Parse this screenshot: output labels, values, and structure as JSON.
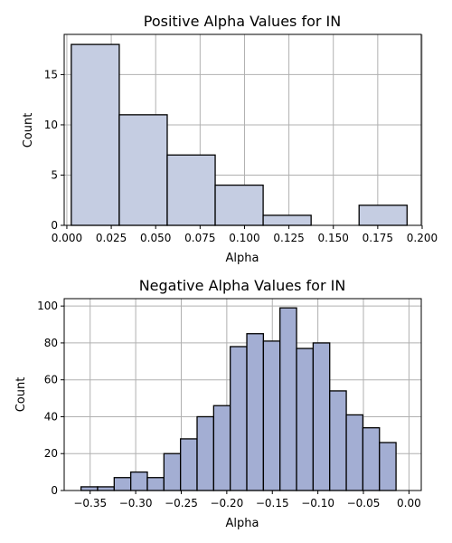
{
  "chart_data": [
    {
      "type": "bar",
      "title": "Positive Alpha Values for IN",
      "xlabel": "Alpha",
      "ylabel": "Count",
      "bar_color": "#c5cde2",
      "xlim": [
        -0.0015,
        0.1995
      ],
      "ylim": [
        0,
        19.0
      ],
      "xticks": [
        0.0,
        0.025,
        0.05,
        0.075,
        0.1,
        0.125,
        0.15,
        0.175,
        0.2
      ],
      "xtick_labels": [
        "0.000",
        "0.025",
        "0.050",
        "0.075",
        "0.100",
        "0.125",
        "0.150",
        "0.175",
        "0.200"
      ],
      "yticks": [
        0,
        5,
        10,
        15
      ],
      "ytick_labels": [
        "0",
        "5",
        "10",
        "15"
      ],
      "bins": [
        {
          "x0": 0.0025,
          "x1": 0.0295,
          "value": 18
        },
        {
          "x0": 0.0295,
          "x1": 0.0565,
          "value": 11
        },
        {
          "x0": 0.0565,
          "x1": 0.0835,
          "value": 7
        },
        {
          "x0": 0.0835,
          "x1": 0.1105,
          "value": 4
        },
        {
          "x0": 0.1105,
          "x1": 0.1375,
          "value": 1
        },
        {
          "x0": 0.1375,
          "x1": 0.1645,
          "value": 0
        },
        {
          "x0": 0.1645,
          "x1": 0.1915,
          "value": 2
        }
      ],
      "grid": true
    },
    {
      "type": "bar",
      "title": "Negative Alpha Values for IN",
      "xlabel": "Alpha",
      "ylabel": "Count",
      "bar_color": "#a3aed3",
      "xlim": [
        -0.3785,
        0.0135
      ],
      "ylim": [
        0,
        104
      ],
      "xticks": [
        -0.35,
        -0.3,
        -0.25,
        -0.2,
        -0.15,
        -0.1,
        -0.05,
        0.0
      ],
      "xtick_labels": [
        "−0.35",
        "−0.30",
        "−0.25",
        "−0.20",
        "−0.15",
        "−0.10",
        "−0.05",
        "0.00"
      ],
      "yticks": [
        0,
        20,
        40,
        60,
        80,
        100
      ],
      "ytick_labels": [
        "0",
        "20",
        "40",
        "60",
        "80",
        "100"
      ],
      "bins": [
        {
          "x0": -0.36,
          "x1": -0.3418,
          "value": 2
        },
        {
          "x0": -0.3418,
          "x1": -0.3236,
          "value": 2
        },
        {
          "x0": -0.3236,
          "x1": -0.3054,
          "value": 7
        },
        {
          "x0": -0.3054,
          "x1": -0.2872,
          "value": 10
        },
        {
          "x0": -0.2872,
          "x1": -0.269,
          "value": 7
        },
        {
          "x0": -0.269,
          "x1": -0.2508,
          "value": 20
        },
        {
          "x0": -0.2508,
          "x1": -0.2326,
          "value": 28
        },
        {
          "x0": -0.2326,
          "x1": -0.2144,
          "value": 40
        },
        {
          "x0": -0.2144,
          "x1": -0.1962,
          "value": 46
        },
        {
          "x0": -0.1962,
          "x1": -0.178,
          "value": 78
        },
        {
          "x0": -0.178,
          "x1": -0.1598,
          "value": 85
        },
        {
          "x0": -0.1598,
          "x1": -0.1416,
          "value": 81
        },
        {
          "x0": -0.1416,
          "x1": -0.1234,
          "value": 99
        },
        {
          "x0": -0.1234,
          "x1": -0.1052,
          "value": 77
        },
        {
          "x0": -0.1052,
          "x1": -0.087,
          "value": 80
        },
        {
          "x0": -0.087,
          "x1": -0.0688,
          "value": 54
        },
        {
          "x0": -0.0688,
          "x1": -0.0506,
          "value": 41
        },
        {
          "x0": -0.0506,
          "x1": -0.0324,
          "value": 34
        },
        {
          "x0": -0.0324,
          "x1": -0.0142,
          "value": 26
        }
      ],
      "grid": true
    }
  ]
}
